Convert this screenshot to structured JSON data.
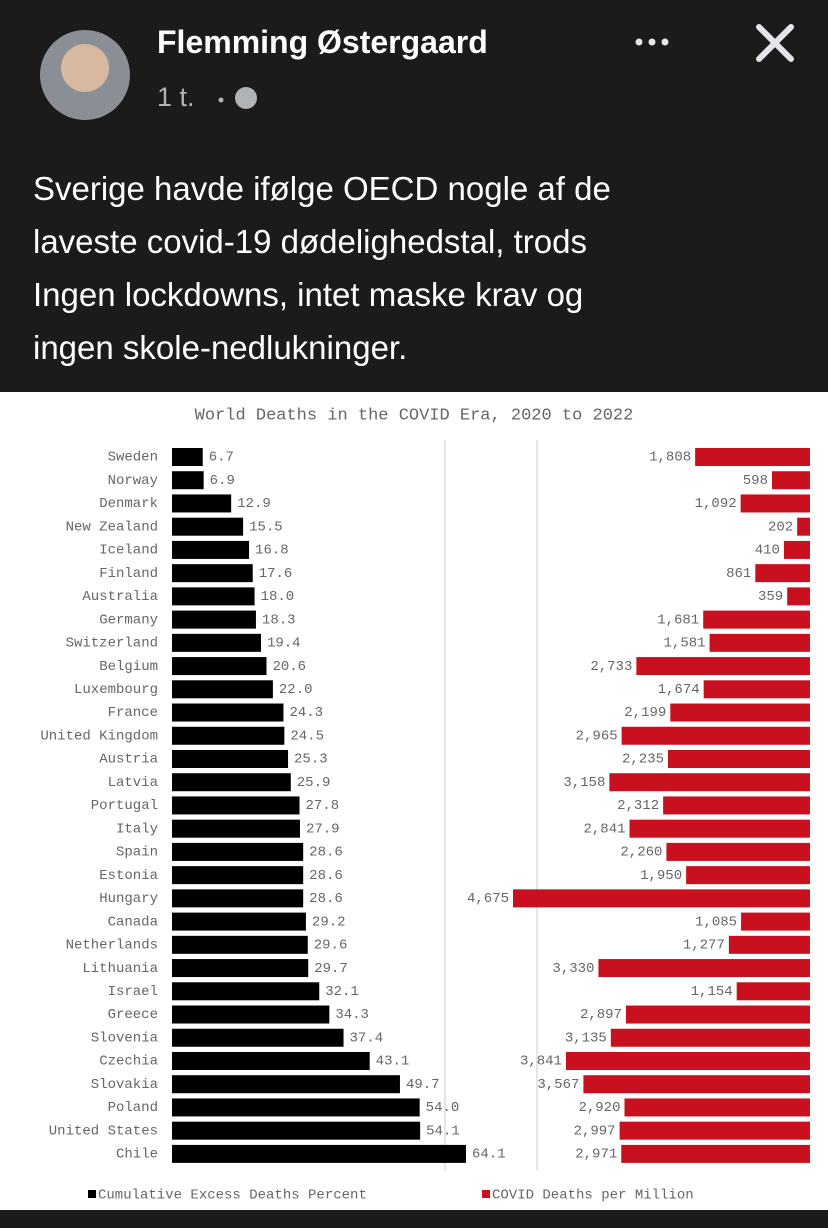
{
  "post": {
    "author": "Flemming Østergaard",
    "time": "1 t.",
    "text_lines": [
      "Sverige havde ifølge OECD nogle af de",
      "laveste covid-19 dødelighedstal, trods",
      "Ingen lockdowns, intet maske krav og",
      "ingen skole-nedlukninger."
    ]
  },
  "chart_data": {
    "type": "bar",
    "orientation": "horizontal",
    "title": "World Deaths in the COVID Era, 2020 to 2022",
    "categories": [
      "Sweden",
      "Norway",
      "Denmark",
      "New Zealand",
      "Iceland",
      "Finland",
      "Australia",
      "Germany",
      "Switzerland",
      "Belgium",
      "Luxembourg",
      "France",
      "United Kingdom",
      "Austria",
      "Latvia",
      "Portugal",
      "Italy",
      "Spain",
      "Estonia",
      "Hungary",
      "Canada",
      "Netherlands",
      "Lithuania",
      "Israel",
      "Greece",
      "Slovenia",
      "Czechia",
      "Slovakia",
      "Poland",
      "United States",
      "Chile"
    ],
    "series": [
      {
        "name": "Cumulative Excess Deaths Percent",
        "color": "#000000",
        "values": [
          6.7,
          6.9,
          12.9,
          15.5,
          16.8,
          17.6,
          18.0,
          18.3,
          19.4,
          20.6,
          22.0,
          24.3,
          24.5,
          25.3,
          25.9,
          27.8,
          27.9,
          28.6,
          28.6,
          28.6,
          29.2,
          29.6,
          29.7,
          32.1,
          34.3,
          37.4,
          43.1,
          49.7,
          54.0,
          54.1,
          64.1
        ],
        "value_labels": [
          "6.7",
          "6.9",
          "12.9",
          "15.5",
          "16.8",
          "17.6",
          "18.0",
          "18.3",
          "19.4",
          "20.6",
          "22.0",
          "24.3",
          "24.5",
          "25.3",
          "25.9",
          "27.8",
          "27.9",
          "28.6",
          "28.6",
          "28.6",
          "29.2",
          "29.6",
          "29.7",
          "32.1",
          "34.3",
          "37.4",
          "43.1",
          "49.7",
          "54.0",
          "54.1",
          "64.1"
        ]
      },
      {
        "name": "COVID Deaths per Million",
        "color": "#c8101e",
        "values": [
          1808,
          598,
          1092,
          202,
          410,
          861,
          359,
          1681,
          1581,
          2733,
          1674,
          2199,
          2965,
          2235,
          3158,
          2312,
          2841,
          2260,
          1950,
          4675,
          1085,
          1277,
          3330,
          1154,
          2897,
          3135,
          3841,
          3567,
          2920,
          2997,
          2971
        ],
        "value_labels": [
          "1,808",
          "598",
          "1,092",
          "202",
          "410",
          "861",
          "359",
          "1,681",
          "1,581",
          "2,733",
          "1,674",
          "2,199",
          "2,965",
          "2,235",
          "3,158",
          "2,312",
          "2,841",
          "2,260",
          "1,950",
          "4,675",
          "1,085",
          "1,277",
          "3,330",
          "1,154",
          "2,897",
          "3,135",
          "3,841",
          "3,567",
          "2,920",
          "2,997",
          "2,971"
        ]
      }
    ]
  }
}
